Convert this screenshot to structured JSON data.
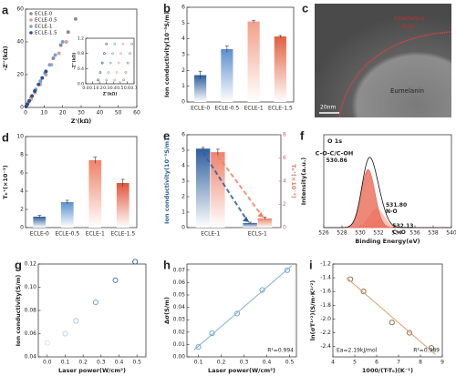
{
  "chart_data": [
    {
      "type": "scatter",
      "panel": "a",
      "x_label": "Z'(kΩ)",
      "y_label": "-Z''(kΩ)",
      "xlim": [
        0,
        60
      ],
      "xticks": [
        0,
        10,
        20,
        30,
        40,
        50,
        60
      ],
      "ylim": [
        0,
        60
      ],
      "yticks": [
        0,
        20,
        40,
        60
      ],
      "legend": "upper-left",
      "series": [
        {
          "name": "ECLE-0",
          "color": "#8c8c8c",
          "x": [
            0.5,
            1.5,
            3,
            5,
            8,
            11,
            15,
            19,
            23,
            27
          ],
          "values": [
            1,
            3,
            6,
            10,
            16,
            22,
            30,
            38,
            46,
            54
          ]
        },
        {
          "name": "ECLE-0.5",
          "color": "#e39a9a",
          "x": [
            0.5,
            1.5,
            3,
            5,
            8,
            11,
            14,
            18,
            22
          ],
          "values": [
            1,
            3,
            5,
            9,
            14,
            20,
            26,
            33,
            40
          ]
        },
        {
          "name": "ECLE-1",
          "color": "#6fa6d6",
          "x": [
            0.3,
            1,
            2,
            3.5,
            5.5,
            8,
            10.5,
            13,
            16,
            20
          ],
          "values": [
            0.5,
            2,
            4,
            7,
            11,
            16,
            21,
            26,
            32,
            40
          ]
        },
        {
          "name": "ECLE-1.5",
          "color": "#2c4f8a",
          "x": [
            0.3,
            1,
            2,
            3.5,
            5,
            7,
            9,
            11
          ],
          "values": [
            0.6,
            2,
            4,
            7,
            10,
            14,
            18,
            22
          ]
        }
      ],
      "inset": {
        "type": "scatter",
        "x_label": "Z'(kΩ)",
        "y_label": "-Z''(kΩ)",
        "xlim": [
          0,
          0.7
        ],
        "xticks": [
          {
            "value": 0,
            "label": "0.0"
          },
          0.1,
          0.2,
          0.3,
          0.4,
          0.5,
          0.6,
          0.7
        ],
        "ylim": [
          0,
          1.2
        ],
        "yticks": [
          {
            "value": 0,
            "label": "0.0"
          },
          0.4,
          0.8,
          1.2
        ],
        "series": [
          {
            "color": "#8c8c8c",
            "x": [
              0.55,
              0.58,
              0.61,
              0.64,
              0.67
            ],
            "values": [
              0.1,
              0.3,
              0.55,
              0.8,
              1.05
            ]
          },
          {
            "color": "#e39a9a",
            "x": [
              0.42,
              0.45,
              0.48,
              0.51,
              0.54
            ],
            "values": [
              0.1,
              0.3,
              0.55,
              0.8,
              1.05
            ]
          },
          {
            "color": "#6fa6d6",
            "x": [
              0.3,
              0.33,
              0.36,
              0.39,
              0.42
            ],
            "values": [
              0.1,
              0.3,
              0.55,
              0.8,
              1.05
            ]
          },
          {
            "color": "#2c4f8a",
            "x": [
              0.18,
              0.21,
              0.24,
              0.27,
              0.3
            ],
            "values": [
              0.1,
              0.3,
              0.55,
              0.8,
              1.05
            ]
          }
        ]
      }
    },
    {
      "type": "bar",
      "panel": "b",
      "y_label": "Ion conductivity(10⁻⁵S/m)",
      "categories": [
        "ECLE-0",
        "ECLE-0.5",
        "ECLE-1",
        "ECLE-1.5"
      ],
      "values": [
        1.7,
        3.35,
        5.1,
        4.15
      ],
      "errors": [
        0.25,
        0.2,
        0.08,
        0.06
      ],
      "colors": [
        "#2e5e9e",
        "#5b8ed0",
        "#f2a08a",
        "#e2603f"
      ],
      "ylim": [
        0,
        6
      ],
      "yticks": [
        0,
        1,
        2,
        3,
        4,
        5,
        6
      ]
    },
    {
      "type": "bar",
      "panel": "d",
      "y_label": "Tₗᵢ⁺(×10⁻³)",
      "categories": [
        "ECLE-0",
        "ECLE-0.5",
        "ECLE-1",
        "ECLE-1.5"
      ],
      "values": [
        1.2,
        2.8,
        7.4,
        4.9
      ],
      "errors": [
        0.15,
        0.2,
        0.35,
        0.4
      ],
      "colors": [
        "#2e5e9e",
        "#5b8ed0",
        "#f0826a",
        "#e2553c"
      ],
      "ylim": [
        0,
        10
      ],
      "yticks": [
        0,
        2,
        4,
        6,
        8,
        10
      ]
    },
    {
      "type": "bar",
      "panel": "e",
      "y_label": "Ion conductivity(10⁻⁵S/m)",
      "y2_label": "Tₗᵢ⁺(×10⁻³)",
      "categories": [
        "ECLE-1",
        "ECLS-1"
      ],
      "ylim": [
        0,
        6
      ],
      "yticks": [
        0,
        1,
        2,
        3,
        4,
        5,
        6
      ],
      "y2lim": [
        0,
        8
      ],
      "y2ticks": [
        0,
        2,
        4,
        6,
        8
      ],
      "series": [
        {
          "color": "#2e5e9e",
          "values": [
            5.1,
            0.3
          ],
          "errors": [
            0.08,
            0.05
          ]
        },
        {
          "color": "#f0826a",
          "axis": "y2",
          "values": [
            6.5,
            0.8
          ],
          "errors": [
            0.25,
            0.1
          ]
        }
      ]
    },
    {
      "type": "spectrum",
      "panel": "f",
      "title": "O 1s",
      "x_label": "Binding Energy(eV)",
      "y_label": "Intensity(a.u.)",
      "xlim": [
        526,
        540
      ],
      "xticks": [
        526,
        528,
        530,
        532,
        534,
        536,
        538,
        540
      ],
      "ylim": [
        0,
        1.6
      ],
      "peaks": [
        {
          "name": "C-O-C/C-OH",
          "center": 530.86,
          "height": 1.0,
          "width": 0.75,
          "color": "#e8604c"
        },
        {
          "name": "N-O",
          "center": {
            "value": 531.8,
            "label": "531.80"
          },
          "height": 0.32,
          "width": 0.8,
          "color": "#f5b8a8"
        },
        {
          "name": "C=O",
          "center": 532.13,
          "height": 0.12,
          "width": 0.7,
          "color": "#f7d3b0"
        }
      ]
    },
    {
      "type": "scatter",
      "panel": "g",
      "x_label": "Laser power(W/cm²)",
      "y_label": "Ion conductivity(S/m)",
      "xlim": [
        -0.05,
        0.55
      ],
      "xticks": [
        {
          "value": 0,
          "label": "0.0"
        },
        0.1,
        0.2,
        0.3,
        0.4,
        0.5
      ],
      "ylim": [
        0.04,
        0.12
      ],
      "yticks": [
        0.04,
        0.06,
        0.08,
        {
          "value": 0.1,
          "label": "0.10"
        },
        0.12
      ],
      "series": [
        {
          "colors": [
            "#cfe3ef",
            "#b4d3e8",
            "#9cc3e0",
            "#6aa3cc",
            "#3d78a8",
            "#2a5f8c"
          ],
          "x": [
            0,
            0.1,
            0.16,
            0.27,
            0.38,
            0.49
          ],
          "values": [
            0.052,
            0.06,
            0.071,
            0.087,
            0.106,
            0.122
          ]
        }
      ]
    },
    {
      "type": "scatter",
      "panel": "h",
      "x_label": "Laser power(W/cm²)",
      "y_label": "Δσ(S/m)",
      "fit_line": "#7fb0d8",
      "annotations": [
        "R²=0.994"
      ],
      "xlim": [
        0.05,
        0.53
      ],
      "xticks": [
        0.1,
        0.2,
        0.3,
        0.4,
        0.5
      ],
      "ylim": [
        0,
        0.075
      ],
      "yticks": [
        {
          "value": 0,
          "label": "0.00"
        },
        0.01,
        0.02,
        0.03,
        0.04,
        0.05,
        0.06,
        0.07
      ],
      "series": [
        {
          "color": "#6a9cc8",
          "x": [
            0.1,
            0.16,
            0.27,
            0.38,
            0.49
          ],
          "values": [
            0.008,
            0.019,
            0.035,
            0.054,
            0.07
          ]
        }
      ]
    },
    {
      "type": "scatter",
      "panel": "i",
      "x_label": "1000/(T-T₀)(K⁻¹)",
      "y_label": "ln(σT¹ᐟ²)(S/m·K¹ᐟ²)",
      "fit_line": "#d9a46b",
      "annotations": [
        "Ea=2.19kJ/mol",
        "R²=0.989"
      ],
      "xlim": [
        4,
        9
      ],
      "xticks": [
        4,
        5,
        6,
        7,
        8,
        9
      ],
      "ylim": [
        -2.55,
        -1.2
      ],
      "yticks": [
        -1.2,
        -1.4,
        -1.6,
        -1.8,
        {
          "value": -2,
          "label": "-2.0"
        },
        -2.2,
        -2.4
      ],
      "series": [
        {
          "color": "#8a6440",
          "x": [
            4.8,
            5.4,
            6.7,
            7.5,
            8.5
          ],
          "values": [
            -1.42,
            -1.6,
            -2.05,
            -2.2,
            -2.42
          ]
        }
      ]
    }
  ],
  "image_panel": {
    "panel": "c",
    "interface": "Interfance",
    "thickness": "3nm",
    "material": "Eumelanin",
    "scale": "20nm"
  }
}
